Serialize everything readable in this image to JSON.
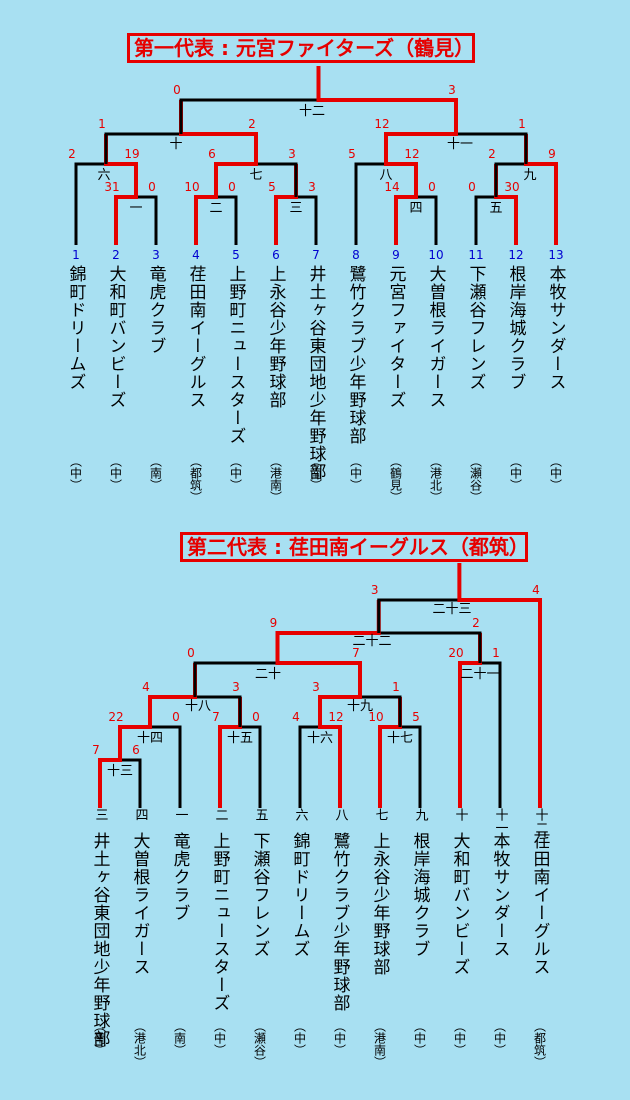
{
  "bracket1": {
    "title": "第一代表 : 元宮ファイターズ（鶴見）",
    "teams": [
      {
        "num": "1",
        "name": "錦町ドリームズ",
        "area": "（中）"
      },
      {
        "num": "2",
        "name": "大和町バンビーズ",
        "area": "（中）"
      },
      {
        "num": "3",
        "name": "竜虎クラブ",
        "area": "（南）"
      },
      {
        "num": "4",
        "name": "荏田南イーグルス",
        "area": "（都筑）"
      },
      {
        "num": "5",
        "name": "上野町ニュースターズ",
        "area": "（中）"
      },
      {
        "num": "6",
        "name": "上永谷少年野球部",
        "area": "（港南）"
      },
      {
        "num": "7",
        "name": "井土ヶ谷東団地少年野球部",
        "area": "（南）"
      },
      {
        "num": "8",
        "name": "鷺竹クラブ少年野球部",
        "area": "（中）"
      },
      {
        "num": "9",
        "name": "元宮ファイターズ",
        "area": "（鶴見）"
      },
      {
        "num": "10",
        "name": "大曽根ライガース",
        "area": "（港北）"
      },
      {
        "num": "11",
        "name": "下瀬谷フレンズ",
        "area": "（瀬谷）"
      },
      {
        "num": "12",
        "name": "根岸海城クラブ",
        "area": "（中）"
      },
      {
        "num": "13",
        "name": "本牧サンダース",
        "area": "（中）"
      }
    ],
    "games": [
      {
        "label": "一",
        "left": "31",
        "right": "0"
      },
      {
        "label": "二",
        "left": "10",
        "right": "0"
      },
      {
        "label": "三",
        "left": "5",
        "right": "3"
      },
      {
        "label": "四",
        "left": "14",
        "right": "0"
      },
      {
        "label": "五",
        "left": "0",
        "right": "30"
      },
      {
        "label": "六",
        "left": "2",
        "right": "19"
      },
      {
        "label": "七",
        "left": "6",
        "right": "3"
      },
      {
        "label": "八",
        "left": "5",
        "right": "12"
      },
      {
        "label": "九",
        "left": "2",
        "right": "9"
      },
      {
        "label": "十",
        "left": "1",
        "right": "2"
      },
      {
        "label": "十一",
        "left": "12",
        "right": "1"
      },
      {
        "label": "十二",
        "left": "0",
        "right": "3"
      }
    ]
  },
  "bracket2": {
    "title": "第二代表 : 荏田南イーグルス（都筑）",
    "teams": [
      {
        "round": "三",
        "name": "井土ヶ谷東団地少年野球部",
        "area": "（南）"
      },
      {
        "round": "四",
        "name": "大曽根ライガース",
        "area": "（港北）"
      },
      {
        "round": "一",
        "name": "竜虎クラブ",
        "area": "（南）"
      },
      {
        "round": "二",
        "name": "上野町ニュースターズ",
        "area": "（中）"
      },
      {
        "round": "五",
        "name": "下瀬谷フレンズ",
        "area": "（瀬谷）"
      },
      {
        "round": "六",
        "name": "錦町ドリームズ",
        "area": "（中）"
      },
      {
        "round": "八",
        "name": "鷺竹クラブ少年野球部",
        "area": "（中）"
      },
      {
        "round": "七",
        "name": "上永谷少年野球部",
        "area": "（港南）"
      },
      {
        "round": "九",
        "name": "根岸海城クラブ",
        "area": "（中）"
      },
      {
        "round": "十",
        "name": "大和町バンビーズ",
        "area": "（中）"
      },
      {
        "round": "十一",
        "name": "本牧サンダース",
        "area": "（中）"
      },
      {
        "round": "十二",
        "name": "荏田南イーグルス",
        "area": "（都筑）"
      }
    ],
    "games": [
      {
        "label": "十三",
        "left": "7",
        "right": "6"
      },
      {
        "label": "十四",
        "left": "22",
        "right": "0"
      },
      {
        "label": "十五",
        "left": "7",
        "right": "0"
      },
      {
        "label": "十六",
        "left": "4",
        "right": "12"
      },
      {
        "label": "十七",
        "left": "10",
        "right": "5"
      },
      {
        "label": "十八",
        "left": "4",
        "right": "3"
      },
      {
        "label": "十九",
        "left": "3",
        "right": "1"
      },
      {
        "label": "二十",
        "left": "0",
        "right": "7"
      },
      {
        "label": "二十一",
        "left": "20",
        "right": "1"
      },
      {
        "label": "二十二",
        "left": "9",
        "right": "2"
      },
      {
        "label": "二十三",
        "left": "3",
        "right": "4"
      }
    ]
  },
  "colors": {
    "background": "#a8e0f2",
    "winner_line": "#e60000",
    "line": "#000000",
    "score": "#e60000",
    "team_number": "#0000d0"
  }
}
